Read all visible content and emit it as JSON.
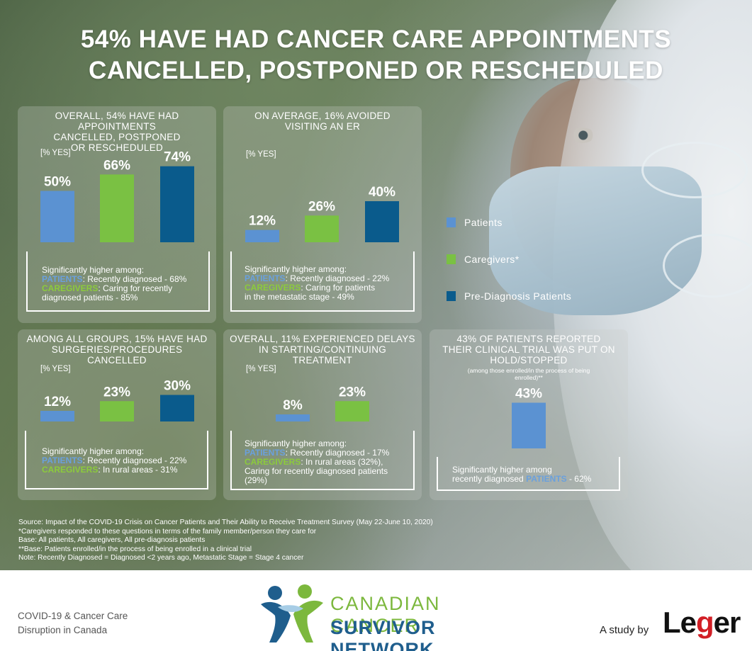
{
  "title": {
    "line1": "54% HAVE HAD CANCER CARE APPOINTMENTS",
    "line2": "CANCELLED, POSTPONED OR RESCHEDULED"
  },
  "colors": {
    "patients": "#5b92d2",
    "caregivers": "#7ac143",
    "pre_diagnosis": "#0a5b8c",
    "patients_highlight": "#6aa0dd",
    "caregivers_highlight": "#8ccb3c"
  },
  "legend": [
    {
      "label": "Patients",
      "color": "#5b92d2"
    },
    {
      "label": "Caregivers*",
      "color": "#7ac143"
    },
    {
      "label": "Pre-Diagnosis Patients",
      "color": "#0a5b8c"
    }
  ],
  "chart_data": [
    {
      "type": "bar",
      "title": "OVERALL, 54% HAVE HAD APPOINTMENTS CANCELLED, POSTPONED OR RESCHEDULED",
      "ylabel": "[% YES]",
      "categories": [
        "Patients",
        "Caregivers*",
        "Pre-Diagnosis Patients"
      ],
      "values": [
        50,
        66,
        74
      ],
      "value_labels": [
        "50%",
        "66%",
        "74%"
      ],
      "ylim": [
        0,
        100
      ],
      "significant": {
        "heading": "Significantly higher among:",
        "patients_label": "PATIENTS",
        "patients_text": ": Recently diagnosed - 68%",
        "caregivers_label": "CAREGIVERS",
        "caregivers_text": ": Caring for recently",
        "extra": "diagnosed patients - 85%"
      }
    },
    {
      "type": "bar",
      "title": "ON AVERAGE, 16% AVOIDED VISITING AN ER",
      "ylabel": "[% YES]",
      "categories": [
        "Patients",
        "Caregivers*",
        "Pre-Diagnosis Patients"
      ],
      "values": [
        12,
        26,
        40
      ],
      "value_labels": [
        "12%",
        "26%",
        "40%"
      ],
      "ylim": [
        0,
        100
      ],
      "significant": {
        "heading": "Significantly higher among:",
        "patients_label": "PATIENTS",
        "patients_text": ": Recently diagnosed - 22%",
        "caregivers_label": "CAREGIVERS",
        "caregivers_text": ": Caring for patients",
        "extra": "in the metastatic stage - 49%"
      }
    },
    {
      "type": "bar",
      "title": "AMONG ALL GROUPS, 15% HAVE HAD SURGERIES/PROCEDURES CANCELLED",
      "ylabel": "[% YES]",
      "categories": [
        "Patients",
        "Caregivers*",
        "Pre-Diagnosis Patients"
      ],
      "values": [
        12,
        23,
        30
      ],
      "value_labels": [
        "12%",
        "23%",
        "30%"
      ],
      "ylim": [
        0,
        100
      ],
      "significant": {
        "heading": "Significantly higher among:",
        "patients_label": "PATIENTS",
        "patients_text": ": Recently diagnosed - 22%",
        "caregivers_label": "CAREGIVERS",
        "caregivers_text": ": In rural areas - 31%",
        "extra": ""
      }
    },
    {
      "type": "bar",
      "title": "OVERALL, 11% EXPERIENCED DELAYS IN STARTING/CONTINUING TREATMENT",
      "ylabel": "[% YES]",
      "categories": [
        "Patients",
        "Caregivers*"
      ],
      "values": [
        8,
        23
      ],
      "value_labels": [
        "8%",
        "23%"
      ],
      "ylim": [
        0,
        100
      ],
      "significant": {
        "heading": "Significantly higher among:",
        "patients_label": "PATIENTS",
        "patients_text": ": Recently diagnosed - 17%",
        "caregivers_label": "CAREGIVERS",
        "caregivers_text": ": In rural areas (32%),",
        "extra": "Caring for recently diagnosed patients",
        "extra2": "(29%)"
      }
    },
    {
      "type": "bar",
      "title": "43% OF PATIENTS REPORTED THEIR CLINICAL TRIAL WAS PUT ON HOLD/STOPPED",
      "subtitle": "(among those enrolled/in the process of being enrolled)**",
      "categories": [
        "Patients"
      ],
      "values": [
        43
      ],
      "value_labels": [
        "43%"
      ],
      "ylim": [
        0,
        100
      ],
      "significant": {
        "heading": "Significantly higher among",
        "line2_pre": "recently diagnosed ",
        "patients_label": "PATIENTS",
        "patients_text": " - 62%"
      }
    }
  ],
  "notes": [
    "Source: Impact of the COVID-19 Crisis on Cancer Patients and Their Ability to Receive Treatment Survey (May 22-June 10, 2020)",
    "*Caregivers responded to these questions in terms of the family member/person they care for",
    "Base: All patients, All caregivers, All pre-diagnosis patients",
    "**Base: Patients enrolled/in the process of being enrolled in a clinical trial",
    "Note: Recently Diagnosed = Diagnosed <2 years ago, Metastatic Stage = Stage 4 cancer"
  ],
  "footer": {
    "left_line1": "COVID-19 & Cancer Care",
    "left_line2": "Disruption in Canada",
    "logo_line1": "CANADIAN CANCER",
    "logo_line2": "SURVIVOR NETWORK",
    "study_by": "A study by",
    "leger_pre": "Le",
    "leger_g": "g",
    "leger_post": "er"
  }
}
